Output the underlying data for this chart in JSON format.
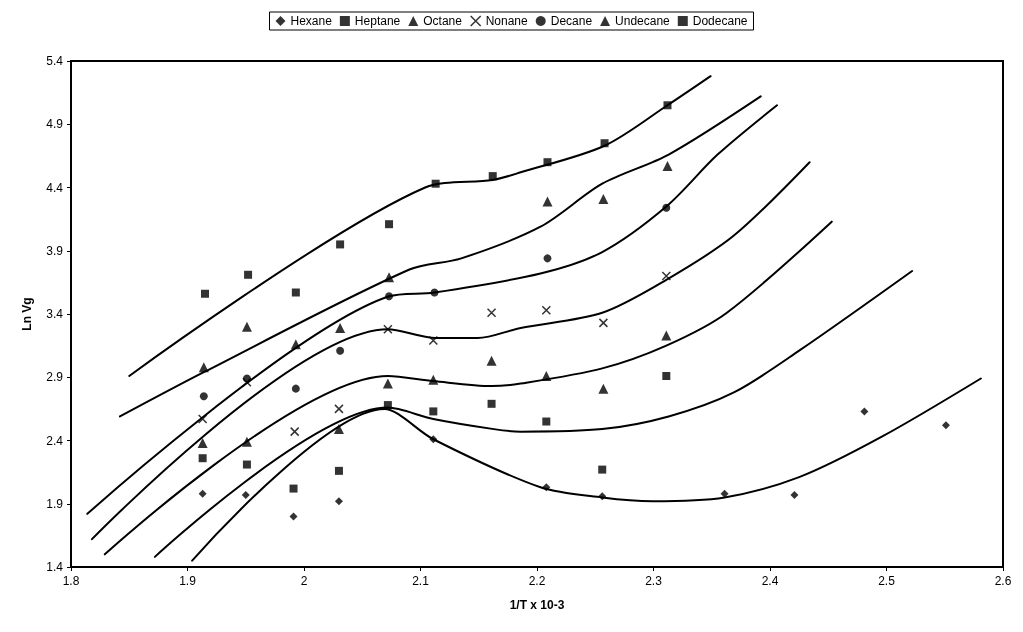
{
  "chart_data": {
    "type": "scatter",
    "xlabel": "1/T x 10-3",
    "ylabel": "Ln Vg",
    "xlim": [
      1.8,
      2.6
    ],
    "xticks": [
      1.8,
      1.9,
      2,
      2.1,
      2.2,
      2.3,
      2.4,
      2.5,
      2.6
    ],
    "ylim": [
      1.4,
      5.4
    ],
    "yticks": [
      1.4,
      1.9,
      2.4,
      2.9,
      3.4,
      3.9,
      4.4,
      4.9,
      5.4
    ],
    "grid": false,
    "legend": "top",
    "series": [
      {
        "name": "Hexane",
        "color": "#000000",
        "marker": "diamond",
        "x": [
          1.913,
          1.95,
          1.991,
          2.03,
          2.111,
          2.208,
          2.256,
          2.361,
          2.421,
          2.481,
          2.551
        ],
        "values": [
          1.98,
          1.97,
          1.8,
          1.92,
          2.41,
          2.03,
          1.96,
          1.98,
          1.97,
          2.63,
          2.52
        ]
      },
      {
        "name": "Heptane",
        "color": "#000000",
        "marker": "square",
        "x": [
          1.913,
          1.951,
          1.991,
          2.03,
          2.072,
          2.111,
          2.161,
          2.208,
          2.256,
          2.311
        ],
        "values": [
          2.26,
          2.21,
          2.02,
          2.16,
          2.68,
          2.63,
          2.69,
          2.55,
          2.17,
          2.91
        ]
      },
      {
        "name": "Octane",
        "color": "#000000",
        "marker": "triangle",
        "x": [
          1.913,
          1.951,
          2.03,
          2.072,
          2.111,
          2.161,
          2.208,
          2.257,
          2.311
        ],
        "values": [
          2.38,
          2.39,
          2.49,
          2.85,
          2.88,
          3.03,
          2.91,
          2.81,
          3.23
        ]
      },
      {
        "name": "Nonane",
        "color": "#000000",
        "marker": "cross",
        "x": [
          1.913,
          1.951,
          1.992,
          2.03,
          2.072,
          2.111,
          2.161,
          2.208,
          2.257,
          2.311
        ],
        "values": [
          2.57,
          2.86,
          2.47,
          2.65,
          3.28,
          3.19,
          3.41,
          3.43,
          3.33,
          3.7
        ]
      },
      {
        "name": "Decane",
        "color": "#000000",
        "marker": "circle",
        "x": [
          1.914,
          1.951,
          1.993,
          2.031,
          2.073,
          2.112,
          2.209,
          2.311
        ],
        "values": [
          2.75,
          2.89,
          2.81,
          3.11,
          3.54,
          3.57,
          3.84,
          4.24
        ]
      },
      {
        "name": "Undecane",
        "color": "#000000",
        "marker": "triangle",
        "x": [
          1.914,
          1.951,
          1.993,
          2.031,
          2.073,
          2.209,
          2.257,
          2.312
        ],
        "values": [
          2.98,
          3.3,
          3.16,
          3.29,
          3.69,
          4.29,
          4.31,
          4.57
        ]
      },
      {
        "name": "Dodecane",
        "color": "#000000",
        "marker": "square",
        "x": [
          1.915,
          1.952,
          1.993,
          2.031,
          2.073,
          2.113,
          2.162,
          2.209,
          2.258,
          2.312
        ],
        "values": [
          3.56,
          3.71,
          3.57,
          3.95,
          4.11,
          4.43,
          4.49,
          4.6,
          4.75,
          5.05
        ]
      },
      {
        "type": "line",
        "color": "#000000",
        "marker": "none",
        "x": [
          1.904,
          2.069,
          2.111,
          2.203,
          2.256,
          2.299,
          2.361,
          2.425,
          2.496,
          2.581
        ],
        "values": [
          1.45,
          2.65,
          2.41,
          2.03,
          1.95,
          1.92,
          1.95,
          2.11,
          2.43,
          2.89
        ]
      },
      {
        "type": "line",
        "color": "#000000",
        "marker": "none",
        "x": [
          1.872,
          2.072,
          2.111,
          2.163,
          2.186,
          2.256,
          2.313,
          2.369,
          2.425,
          2.522
        ],
        "values": [
          1.48,
          2.66,
          2.57,
          2.49,
          2.47,
          2.49,
          2.59,
          2.78,
          3.11,
          3.74
        ]
      },
      {
        "type": "line",
        "color": "#000000",
        "marker": "none",
        "x": [
          1.829,
          2.072,
          2.111,
          2.161,
          2.186,
          2.256,
          2.311,
          2.363,
          2.453
        ],
        "values": [
          1.5,
          2.91,
          2.87,
          2.83,
          2.85,
          2.97,
          3.15,
          3.41,
          4.13
        ]
      },
      {
        "type": "line",
        "color": "#000000",
        "marker": "none",
        "x": [
          1.818,
          2.072,
          2.113,
          2.149,
          2.186,
          2.256,
          2.311,
          2.369,
          2.434
        ],
        "values": [
          1.62,
          3.28,
          3.21,
          3.21,
          3.29,
          3.41,
          3.67,
          4.02,
          4.6
        ]
      },
      {
        "type": "line",
        "color": "#000000",
        "marker": "none",
        "x": [
          1.814,
          2.073,
          2.112,
          2.203,
          2.256,
          2.311,
          2.355,
          2.406
        ],
        "values": [
          1.82,
          3.54,
          3.57,
          3.72,
          3.89,
          4.25,
          4.66,
          5.05
        ]
      },
      {
        "type": "line",
        "color": "#000000",
        "marker": "none",
        "x": [
          1.842,
          1.914,
          2.09,
          2.135,
          2.203,
          2.256,
          2.313,
          2.392
        ],
        "values": [
          2.59,
          2.94,
          3.75,
          3.84,
          4.09,
          4.43,
          4.66,
          5.12
        ]
      },
      {
        "type": "line",
        "color": "#000000",
        "marker": "none",
        "x": [
          1.85,
          2.104,
          2.162,
          2.186,
          2.258,
          2.312,
          2.349
        ],
        "values": [
          2.91,
          4.4,
          4.46,
          4.52,
          4.73,
          5.05,
          5.28
        ]
      }
    ]
  }
}
